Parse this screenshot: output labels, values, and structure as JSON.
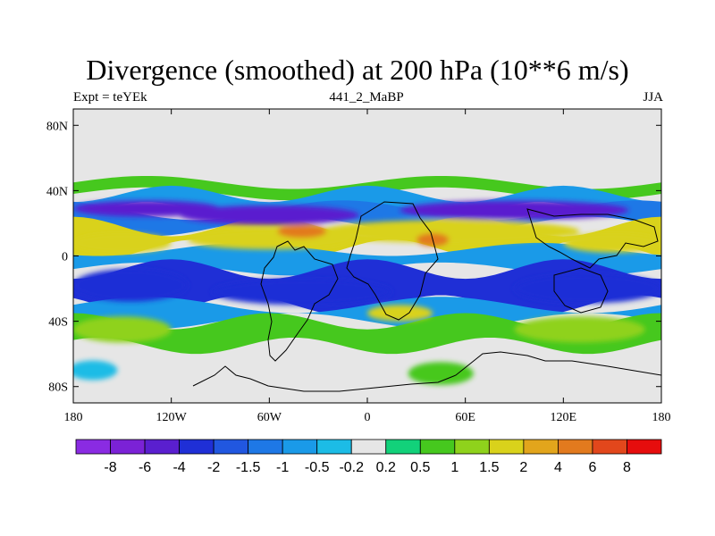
{
  "chart_data": {
    "type": "heatmap",
    "title": "Divergence (smoothed) at 200 hPa (10**6 m/s)",
    "subtitle_left": "Expt = teYEk",
    "subtitle_center": "441_2_MaBP",
    "subtitle_right": "JJA",
    "x_ticks": [
      {
        "value": -180,
        "label": "180"
      },
      {
        "value": -120,
        "label": "120W"
      },
      {
        "value": -60,
        "label": "60W"
      },
      {
        "value": 0,
        "label": "0"
      },
      {
        "value": 60,
        "label": "60E"
      },
      {
        "value": 120,
        "label": "120E"
      },
      {
        "value": 180,
        "label": "180"
      }
    ],
    "y_ticks": [
      {
        "value": 80,
        "label": "80N"
      },
      {
        "value": 40,
        "label": "40N"
      },
      {
        "value": 0,
        "label": "0"
      },
      {
        "value": -40,
        "label": "40S"
      },
      {
        "value": -80,
        "label": "80S"
      }
    ],
    "xlim": [
      -180,
      180
    ],
    "ylim": [
      -90,
      90
    ],
    "colorbar": {
      "levels": [
        "-8",
        "-6",
        "-4",
        "-2",
        "-1.5",
        "-1",
        "-0.5",
        "-0.2",
        "0.2",
        "0.5",
        "1",
        "1.5",
        "2",
        "4",
        "6",
        "8"
      ],
      "colors": [
        "#8a2be2",
        "#7b22d6",
        "#5a1fcf",
        "#1f2fd6",
        "#2157e0",
        "#1e78e6",
        "#1a9ae8",
        "#1cbce6",
        "#e6e6e6",
        "#12d17a",
        "#46c81e",
        "#8fd21c",
        "#d9d21b",
        "#e2a51c",
        "#e27a1e",
        "#e2471c",
        "#e60d0d"
      ]
    },
    "regions": [
      {
        "lon": -135,
        "lat": 29,
        "rx": 45,
        "ry": 5,
        "level": 2
      },
      {
        "lon": -60,
        "lat": 25,
        "rx": 55,
        "ry": 6,
        "level": 2
      },
      {
        "lon": 90,
        "lat": 28,
        "rx": 70,
        "ry": 6,
        "level": 2
      },
      {
        "lon": -150,
        "lat": 8,
        "rx": 30,
        "ry": 6,
        "level": 12
      },
      {
        "lon": -60,
        "lat": 10,
        "rx": 50,
        "ry": 6,
        "level": 12
      },
      {
        "lon": 50,
        "lat": 15,
        "rx": 80,
        "ry": 7,
        "level": 12
      },
      {
        "lon": 150,
        "lat": 8,
        "rx": 30,
        "ry": 6,
        "level": 12
      },
      {
        "lon": -40,
        "lat": 15,
        "rx": 15,
        "ry": 4,
        "level": 14
      },
      {
        "lon": 40,
        "lat": 10,
        "rx": 10,
        "ry": 4,
        "level": 14
      },
      {
        "lon": -145,
        "lat": -18,
        "rx": 35,
        "ry": 10,
        "level": 3
      },
      {
        "lon": -40,
        "lat": -22,
        "rx": 55,
        "ry": 8,
        "level": 3
      },
      {
        "lon": 135,
        "lat": -20,
        "rx": 45,
        "ry": 9,
        "level": 3
      },
      {
        "lon": -150,
        "lat": -45,
        "rx": 30,
        "ry": 8,
        "level": 11
      },
      {
        "lon": 130,
        "lat": -45,
        "rx": 40,
        "ry": 8,
        "level": 11
      },
      {
        "lon": 20,
        "lat": -35,
        "rx": 20,
        "ry": 5,
        "level": 12
      },
      {
        "lon": 45,
        "lat": -72,
        "rx": 20,
        "ry": 7,
        "level": 10
      },
      {
        "lon": -168,
        "lat": -70,
        "rx": 15,
        "ry": 6,
        "level": 7
      }
    ]
  }
}
